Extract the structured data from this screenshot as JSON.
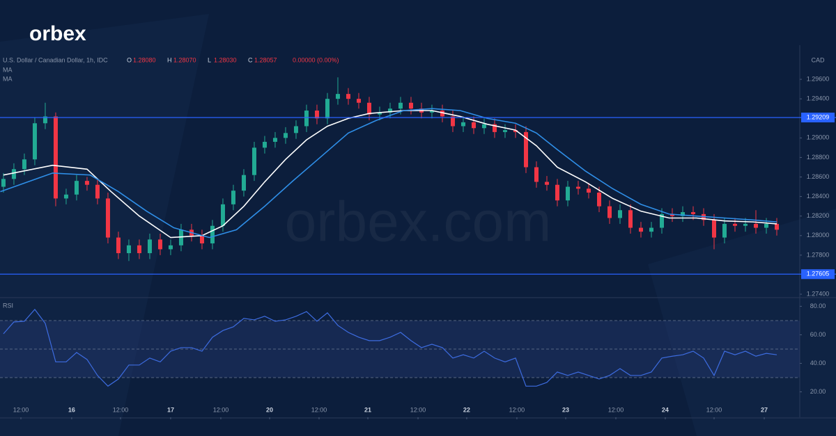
{
  "brand": "orbex",
  "watermark": "orbex.com",
  "header": {
    "symbol": "U.S. Dollar / Canadian Dollar, 1h, IDC",
    "ohlc": [
      {
        "key": "O",
        "value": "1.28080"
      },
      {
        "key": "H",
        "value": "1.28070"
      },
      {
        "key": "L",
        "value": "1.28030"
      },
      {
        "key": "C",
        "value": "1.28057"
      }
    ],
    "change": "0.00000 (0.00%)",
    "unit": "CAD"
  },
  "chart_data": [
    {
      "type": "candlestick",
      "up_color": "#22ab94",
      "down_color": "#f23645",
      "grid": false,
      "xlim": [
        -0.33,
        76.2
      ],
      "ylim": [
        1.27372,
        1.29878
      ],
      "yticks": [
        {
          "value": 1.296,
          "label": "1.29600"
        },
        {
          "value": 1.294,
          "label": "1.29400"
        },
        {
          "value": 1.29,
          "label": "1.29000"
        },
        {
          "value": 1.288,
          "label": "1.28800"
        },
        {
          "value": 1.286,
          "label": "1.28600"
        },
        {
          "value": 1.284,
          "label": "1.28400"
        },
        {
          "value": 1.282,
          "label": "1.28200"
        },
        {
          "value": 1.28,
          "label": "1.28000"
        },
        {
          "value": 1.278,
          "label": "1.27800"
        },
        {
          "value": 1.274,
          "label": "1.27400"
        }
      ],
      "hlines": [
        {
          "value": 1.29209,
          "label": "1.29209",
          "color": "#2962ff"
        },
        {
          "value": 1.27605,
          "label": "1.27605",
          "color": "#2962ff"
        }
      ],
      "x": [
        0,
        1,
        2,
        3,
        4,
        5,
        6,
        7,
        8,
        9,
        10,
        11,
        12,
        13,
        14,
        15,
        16,
        17,
        18,
        19,
        20,
        21,
        22,
        23,
        24,
        25,
        26,
        27,
        28,
        29,
        30,
        31,
        32,
        33,
        34,
        35,
        36,
        37,
        38,
        39,
        40,
        41,
        42,
        43,
        44,
        45,
        46,
        47,
        48,
        49,
        50,
        51,
        52,
        53,
        54,
        55,
        56,
        57,
        58,
        59,
        60,
        61,
        62,
        63,
        64,
        65,
        66,
        67,
        68,
        69,
        70,
        71,
        72,
        73,
        74
      ],
      "open": [
        1.285,
        1.2858,
        1.2868,
        1.2878,
        1.2915,
        1.2922,
        1.2838,
        1.2842,
        1.2856,
        1.2852,
        1.2838,
        1.2798,
        1.2782,
        1.279,
        1.2782,
        1.2796,
        1.2786,
        1.279,
        1.2806,
        1.28,
        1.2792,
        1.281,
        1.2832,
        1.2846,
        1.2862,
        1.289,
        1.2896,
        1.29,
        1.2905,
        1.2912,
        1.2928,
        1.292,
        1.294,
        1.2945,
        1.294,
        1.2936,
        1.2924,
        1.2926,
        1.293,
        1.2936,
        1.293,
        1.2926,
        1.2928,
        1.2922,
        1.2912,
        1.2916,
        1.291,
        1.2914,
        1.2906,
        1.2908,
        1.2906,
        1.287,
        1.2855,
        1.2852,
        1.2836,
        1.285,
        1.2848,
        1.2844,
        1.283,
        1.2818,
        1.2826,
        1.2808,
        1.2804,
        1.2808,
        1.2822,
        1.282,
        1.2824,
        1.2822,
        1.2816,
        1.2798,
        1.2812,
        1.281,
        1.2812,
        1.2808,
        1.2812
      ],
      "high": [
        1.2864,
        1.2874,
        1.2884,
        1.2921,
        1.2936,
        1.2926,
        1.2848,
        1.2862,
        1.286,
        1.2858,
        1.2844,
        1.2804,
        1.2796,
        1.2796,
        1.2802,
        1.2802,
        1.2796,
        1.2812,
        1.2812,
        1.2806,
        1.2816,
        1.2838,
        1.2852,
        1.2868,
        1.2896,
        1.2902,
        1.2906,
        1.2911,
        1.2918,
        1.2934,
        1.2934,
        1.2946,
        1.2962,
        1.2951,
        1.2946,
        1.2942,
        1.2932,
        1.2936,
        1.2942,
        1.2942,
        1.2936,
        1.2934,
        1.2934,
        1.2928,
        1.2922,
        1.2922,
        1.292,
        1.292,
        1.2914,
        1.2914,
        1.2912,
        1.2876,
        1.2861,
        1.2858,
        1.2856,
        1.2856,
        1.2854,
        1.285,
        1.2836,
        1.2832,
        1.2832,
        1.2814,
        1.2814,
        1.2828,
        1.2828,
        1.283,
        1.283,
        1.2828,
        1.2822,
        1.2818,
        1.2818,
        1.2818,
        1.2826,
        1.2818,
        1.2818
      ],
      "low": [
        1.2844,
        1.2852,
        1.2862,
        1.2872,
        1.2909,
        1.283,
        1.2832,
        1.2836,
        1.2846,
        1.2832,
        1.2792,
        1.2776,
        1.2774,
        1.2776,
        1.2776,
        1.278,
        1.278,
        1.2784,
        1.2794,
        1.2786,
        1.2786,
        1.2804,
        1.2826,
        1.284,
        1.2856,
        1.2884,
        1.289,
        1.2894,
        1.2899,
        1.2906,
        1.2914,
        1.2914,
        1.2934,
        1.2934,
        1.293,
        1.2918,
        1.2918,
        1.292,
        1.2924,
        1.2924,
        1.292,
        1.292,
        1.2916,
        1.2906,
        1.2906,
        1.2904,
        1.2904,
        1.29,
        1.29,
        1.29,
        1.2864,
        1.2849,
        1.2846,
        1.283,
        1.283,
        1.2842,
        1.2838,
        1.2824,
        1.2812,
        1.2812,
        1.2802,
        1.2798,
        1.2798,
        1.2802,
        1.2814,
        1.2814,
        1.2816,
        1.281,
        1.2786,
        1.2792,
        1.2804,
        1.2804,
        1.2802,
        1.2802,
        1.28
      ],
      "close": [
        1.2858,
        1.2868,
        1.2878,
        1.2915,
        1.2922,
        1.2838,
        1.2842,
        1.2856,
        1.2852,
        1.2838,
        1.2798,
        1.2782,
        1.279,
        1.2782,
        1.2796,
        1.2786,
        1.279,
        1.2806,
        1.28,
        1.2792,
        1.281,
        1.2832,
        1.2846,
        1.2862,
        1.289,
        1.2896,
        1.29,
        1.2905,
        1.2912,
        1.2928,
        1.292,
        1.294,
        1.2945,
        1.294,
        1.2936,
        1.2924,
        1.2926,
        1.293,
        1.2936,
        1.293,
        1.2926,
        1.2928,
        1.2922,
        1.2912,
        1.2916,
        1.291,
        1.2914,
        1.2906,
        1.2908,
        1.2906,
        1.287,
        1.2855,
        1.2852,
        1.2836,
        1.285,
        1.2848,
        1.2844,
        1.283,
        1.2818,
        1.2826,
        1.2808,
        1.2804,
        1.2808,
        1.2822,
        1.282,
        1.2824,
        1.2822,
        1.2816,
        1.2798,
        1.2812,
        1.281,
        1.2812,
        1.2808,
        1.2812,
        1.2806
      ],
      "lines": [
        {
          "name": "MA",
          "color": "#ffffff",
          "x": [
            0,
            4.7,
            8,
            10.3,
            13,
            16,
            19,
            21,
            23,
            25,
            27,
            29,
            31,
            33,
            35,
            38.3,
            41,
            43.7,
            46.3,
            49,
            51,
            53,
            55.7,
            58.3,
            61,
            63.7,
            66.3,
            69,
            71.7,
            74
          ],
          "values": [
            1.2862,
            1.2872,
            1.2868,
            1.2845,
            1.282,
            1.2798,
            1.28,
            1.281,
            1.283,
            1.2855,
            1.2878,
            1.2898,
            1.2912,
            1.292,
            1.2925,
            1.2928,
            1.2928,
            1.2922,
            1.2914,
            1.2908,
            1.2892,
            1.287,
            1.2855,
            1.2838,
            1.2825,
            1.2818,
            1.2818,
            1.2815,
            1.2814,
            1.2812
          ]
        },
        {
          "name": "MA",
          "color": "#2f8fe8",
          "x": [
            -0.3,
            4.7,
            8.3,
            11,
            13.7,
            16.3,
            19.7,
            22.3,
            25,
            27.7,
            30.3,
            33,
            35.7,
            38.3,
            41,
            43.7,
            46.3,
            49,
            51,
            53,
            55.7,
            58.3,
            61,
            63.7,
            66.3,
            69,
            71.7,
            74
          ],
          "values": [
            1.2845,
            1.2864,
            1.2862,
            1.2845,
            1.2825,
            1.2808,
            1.2798,
            1.2806,
            1.283,
            1.2856,
            1.288,
            1.2905,
            1.2918,
            1.2928,
            1.293,
            1.2928,
            1.292,
            1.2915,
            1.2905,
            1.2888,
            1.2866,
            1.2848,
            1.2832,
            1.2822,
            1.282,
            1.2818,
            1.2816,
            1.2814
          ]
        }
      ]
    },
    {
      "type": "line",
      "title": "RSI",
      "grid": false,
      "color": "#3d6ce0",
      "band": [
        30,
        70
      ],
      "levels": [
        30,
        50,
        70
      ],
      "xlim": [
        -0.33,
        76.2
      ],
      "ylim": [
        2.2,
        85.1
      ],
      "yticks": [
        {
          "value": 80,
          "label": "80.00"
        },
        {
          "value": 60,
          "label": "60.00"
        },
        {
          "value": 40,
          "label": "40.00"
        },
        {
          "value": 20,
          "label": "20.00"
        }
      ],
      "xticks": [
        {
          "value": 1.67,
          "label": "12:00"
        },
        {
          "value": 6.53,
          "label": "16"
        },
        {
          "value": 11.2,
          "label": "12:00"
        },
        {
          "value": 16,
          "label": "17"
        },
        {
          "value": 20.8,
          "label": "12:00"
        },
        {
          "value": 25.47,
          "label": "20"
        },
        {
          "value": 30.2,
          "label": "12:00"
        },
        {
          "value": 34.87,
          "label": "21"
        },
        {
          "value": 39.67,
          "label": "12:00"
        },
        {
          "value": 44.33,
          "label": "22"
        },
        {
          "value": 49.13,
          "label": "12:00"
        },
        {
          "value": 53.8,
          "label": "23"
        },
        {
          "value": 58.6,
          "label": "12:00"
        },
        {
          "value": 63.33,
          "label": "24"
        },
        {
          "value": 68,
          "label": "12:00"
        },
        {
          "value": 72.8,
          "label": "27"
        }
      ],
      "x": [
        0,
        1,
        2,
        3,
        4,
        5,
        6,
        7,
        8,
        9,
        10,
        11,
        12,
        13,
        14,
        15,
        16,
        17,
        18,
        19,
        20,
        21,
        22,
        23,
        24,
        25,
        26,
        27,
        28,
        29,
        30,
        31,
        32,
        33,
        34,
        35,
        36,
        37,
        38,
        39,
        40,
        41,
        42,
        43,
        44,
        45,
        46,
        47,
        48,
        49,
        50,
        51,
        52,
        53,
        54,
        55,
        56,
        57,
        58,
        59,
        60,
        61,
        62,
        63,
        64,
        65,
        66,
        67,
        68,
        69,
        70,
        71,
        72,
        73,
        74
      ],
      "values": [
        60.7,
        69,
        69.5,
        77.8,
        68,
        41,
        41,
        47.6,
        42.7,
        31.5,
        24,
        29,
        38.8,
        38.8,
        43.7,
        41,
        48.5,
        51,
        51,
        48.5,
        58.3,
        63,
        65.6,
        71.5,
        70.5,
        73,
        69.5,
        70.5,
        73,
        76.3,
        69.5,
        75.4,
        66.6,
        61.7,
        58.3,
        55.9,
        55.9,
        58.3,
        61.7,
        55.9,
        51,
        53.4,
        51,
        43.7,
        46,
        43.7,
        48.5,
        43.7,
        41,
        43.7,
        24,
        24,
        26.6,
        33.9,
        31.5,
        33.9,
        31.5,
        29,
        31.5,
        36.3,
        31.5,
        31.5,
        33.9,
        43.7,
        45,
        46,
        48.5,
        43.7,
        31.5,
        48.5,
        46,
        48.5,
        45,
        47,
        46
      ]
    }
  ]
}
